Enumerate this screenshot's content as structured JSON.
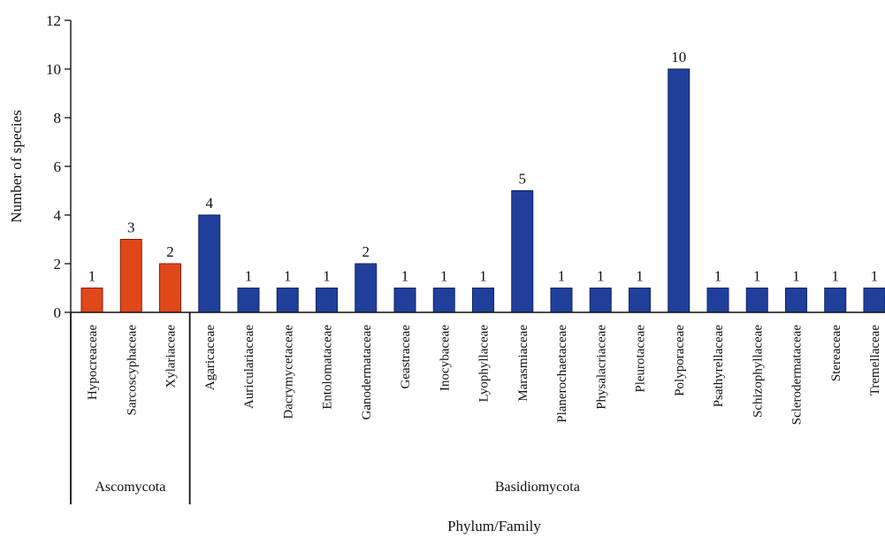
{
  "chart_data": {
    "type": "bar",
    "xlabel": "Phylum/Family",
    "ylabel": "Number of species",
    "ylim": [
      0,
      12
    ],
    "yticks": [
      0,
      2,
      4,
      6,
      8,
      10,
      12
    ],
    "grid": false,
    "categories": [
      "Hypocreaceae",
      "Sarcoscyphaceae",
      "Xylariaceae",
      "Agaricaceae",
      "Auriculariaceae",
      "Dacrymycetaceae",
      "Entolomataceae",
      "Ganodermataceae",
      "Geastraceae",
      "Inocybaceae",
      "Lyophyllaceae",
      "Marasmiaceae",
      "Planerochaetaceae",
      "Physalacriaceae",
      "Pleurotaceae",
      "Polyporaceae",
      "Psathyrellaceae",
      "Schizophyllaceae",
      "Sclerodermataceae",
      "Stereaceae",
      "Tremellaceae"
    ],
    "values": [
      1,
      3,
      2,
      4,
      1,
      1,
      1,
      2,
      1,
      1,
      1,
      5,
      1,
      1,
      1,
      10,
      1,
      1,
      1,
      1,
      1
    ],
    "groups": [
      {
        "name": "Ascomycota",
        "count": 3,
        "color": "#e0481a"
      },
      {
        "name": "Basidiomycota",
        "count": 18,
        "color": "#1f3f9a"
      }
    ]
  }
}
